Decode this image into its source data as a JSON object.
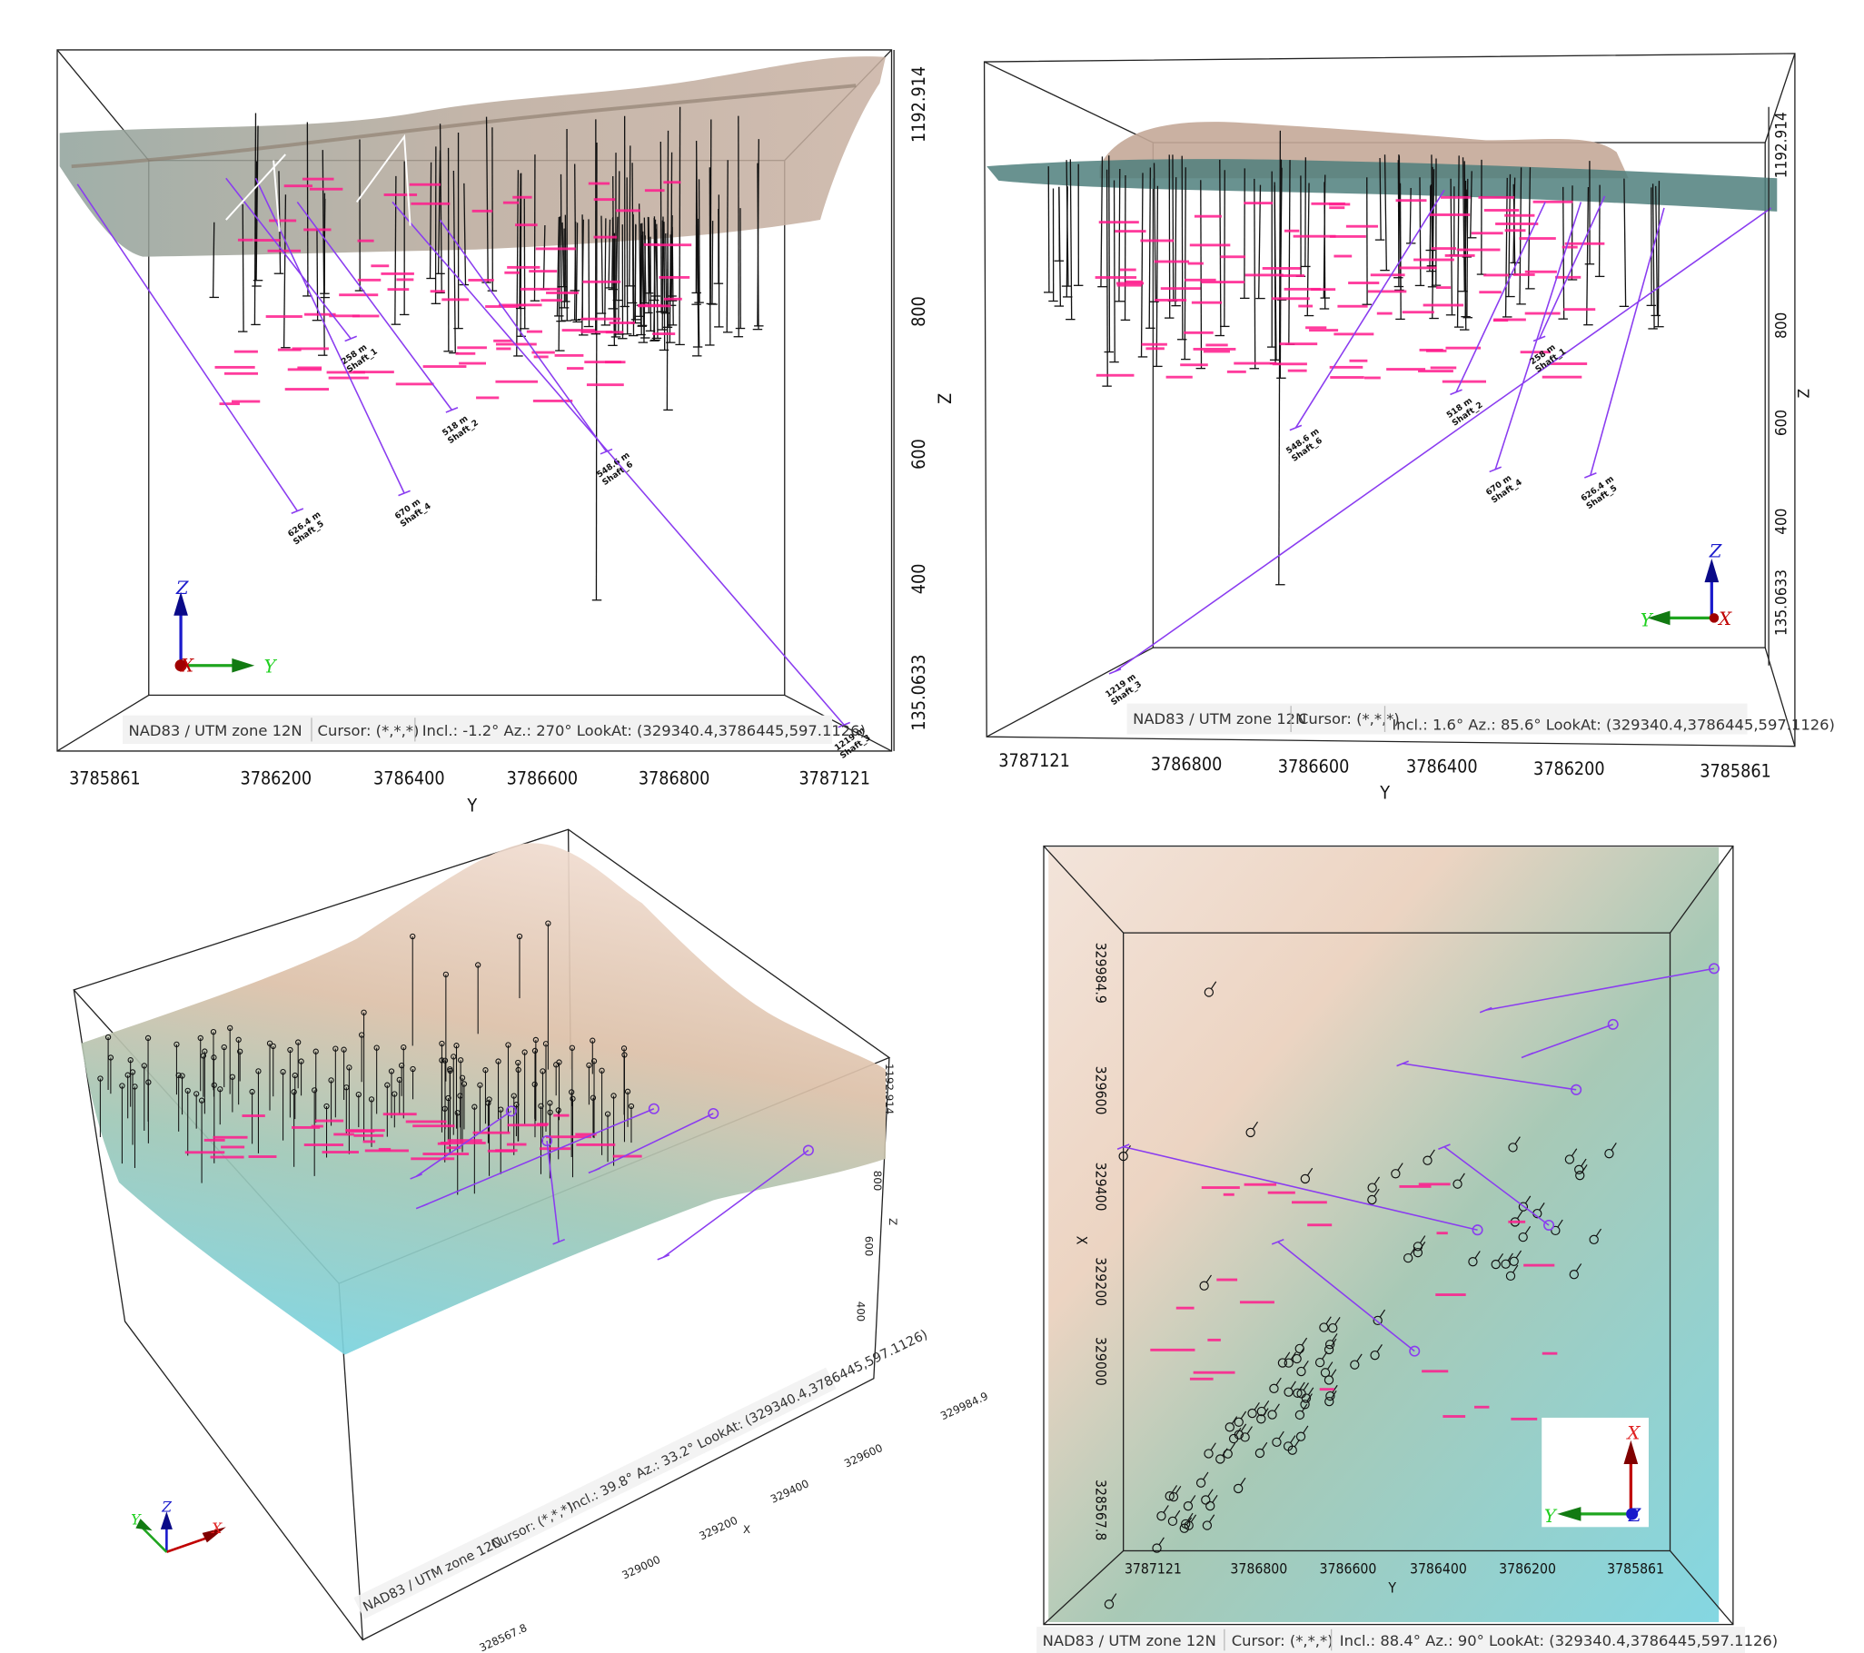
{
  "colors": {
    "shaft": "#8a3cf0",
    "assay_label": "#ff1a8c",
    "drillhole": "#111111",
    "axis_x": "#c00000",
    "axis_y": "#1fa51f",
    "axis_z": "#1a1acc",
    "terrain_high": "#e9d2c2",
    "terrain_low": "#7fd3de"
  },
  "status_bar": {
    "crs": "NAD83 / UTM zone 12N",
    "cursor": "Cursor: (*,*,*)"
  },
  "panels": [
    {
      "view": "Incl.: -1.2° Az.: 270° LookAt: (329340.4,3786445,597.1126)",
      "z_axis": {
        "label": "Z",
        "ticks": [
          "1192.914",
          "800",
          "600",
          "400",
          "135.0633"
        ]
      },
      "y_axis": {
        "label": "Y",
        "ticks": [
          "3785861",
          "3786200",
          "3786400",
          "3786600",
          "3786800",
          "3787121"
        ]
      },
      "gizmo": {
        "x": "X",
        "y": "Y",
        "z": "Z"
      },
      "shafts": [
        {
          "depth": "626.4 m",
          "name": "Shaft_5"
        },
        {
          "depth": "670 m",
          "name": "Shaft_4"
        },
        {
          "depth": "518 m",
          "name": "Shaft_2"
        },
        {
          "depth": "258 m",
          "name": "Shaft_1"
        },
        {
          "depth": "548.6 m",
          "name": "Shaft_6"
        },
        {
          "depth": "1219 m",
          "name": "Shaft_3"
        }
      ]
    },
    {
      "view": "Incl.: 1.6° Az.: 85.6° LookAt: (329340.4,3786445,597.1126)",
      "z_axis": {
        "label": "Z",
        "ticks": [
          "1192.914",
          "800",
          "600",
          "400",
          "135.0633"
        ]
      },
      "y_axis": {
        "label": "Y",
        "ticks": [
          "3787121",
          "3786800",
          "3786600",
          "3786400",
          "3786200",
          "3785861"
        ]
      },
      "gizmo": {
        "x": "X",
        "y": "Y",
        "z": "Z"
      },
      "shafts": [
        {
          "depth": "548.6 m",
          "name": "Shaft_6"
        },
        {
          "depth": "1219 m",
          "name": "Shaft_3"
        },
        {
          "depth": "518 m",
          "name": "Shaft_2"
        },
        {
          "depth": "670 m",
          "name": "Shaft_4"
        },
        {
          "depth": "626.4 m",
          "name": "Shaft_5"
        },
        {
          "depth": "258 m",
          "name": "Shaft_1"
        }
      ]
    },
    {
      "view": "Incl.: 39.8° Az.: 33.2° LookAt: (329340.4,3786445,597.1126)",
      "z_axis": {
        "label": "Z",
        "ticks": [
          "1192.914",
          "800",
          "600",
          "400"
        ]
      },
      "x_axis": {
        "label": "X",
        "ticks": [
          "328567.8",
          "329000",
          "329200",
          "329400",
          "329600",
          "329984.9"
        ]
      },
      "gizmo": {
        "x": "X",
        "y": "Y",
        "z": "Z"
      }
    },
    {
      "view": "Incl.: 88.4° Az.: 90° LookAt: (329340.4,3786445,597.1126)",
      "x_axis": {
        "label": "X",
        "ticks": [
          "329984.9",
          "329600",
          "329400",
          "329200",
          "329000",
          "328567.8"
        ]
      },
      "y_axis": {
        "label": "Y",
        "ticks": [
          "3787121",
          "3786800",
          "3786600",
          "3786400",
          "3786200",
          "3785861"
        ]
      },
      "gizmo": {
        "x": "X",
        "y": "Y",
        "z": "Z"
      }
    }
  ]
}
